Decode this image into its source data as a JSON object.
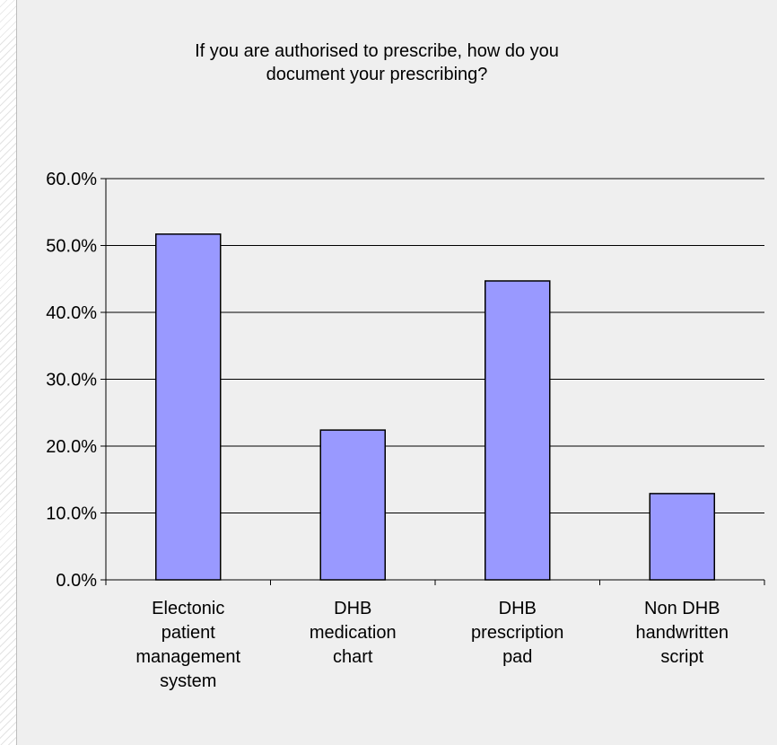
{
  "chart_data": {
    "type": "bar",
    "title_lines": [
      "If you are authorised to prescribe, how do you",
      "document your prescribing?"
    ],
    "categories": [
      [
        "Electonic",
        "patient",
        "management",
        "system"
      ],
      [
        "DHB",
        "medication",
        "chart"
      ],
      [
        "DHB",
        "prescription",
        "pad"
      ],
      [
        "Non DHB",
        "handwritten",
        "script"
      ]
    ],
    "values": [
      51.7,
      22.4,
      44.7,
      12.9
    ],
    "ylim": [
      0,
      60
    ],
    "y_ticks": [
      "0.0%",
      "10.0%",
      "20.0%",
      "30.0%",
      "40.0%",
      "50.0%",
      "60.0%"
    ],
    "grid": true,
    "colors": {
      "bar_fill": "#9999ff",
      "bar_stroke": "#000000",
      "gridline": "#000000",
      "background": "#efefef"
    }
  }
}
